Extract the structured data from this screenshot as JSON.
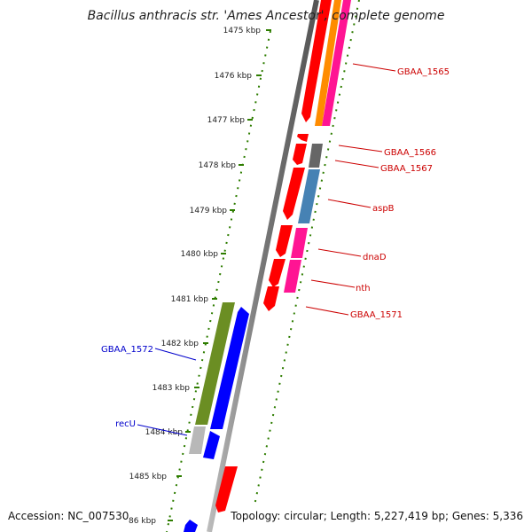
{
  "title": "Bacillus anthracis str. 'Ames Ancestor', complete genome",
  "footer": {
    "accession_label": "Accession:",
    "accession": "NC_007530",
    "topology_label": "Topology:",
    "topology": "circular;",
    "length_label": "Length:",
    "length": "5,227,419 bp;",
    "genes_label": "Genes:",
    "genes": "5,336"
  },
  "ticks": [
    "1475 kbp",
    "1476 kbp",
    "1477 kbp",
    "1478 kbp",
    "1479 kbp",
    "1480 kbp",
    "1481 kbp",
    "1482 kbp",
    "1483 kbp",
    "1484 kbp",
    "1485 kbp",
    "86 kbp"
  ],
  "gene_labels_forward": [
    "GBAA_1565",
    "GBAA_1566",
    "GBAA_1567",
    "aspB",
    "dnaD",
    "nth",
    "GBAA_1571"
  ],
  "gene_labels_reverse": [
    "GBAA_1572",
    "recU"
  ],
  "colors": {
    "red": "#ff0000",
    "orange": "#ff8c00",
    "pink": "#ff1493",
    "gray": "#666666",
    "steelblue": "#4682b4",
    "olive": "#6b8e23",
    "blue": "#0000ff",
    "lightgray": "#b8b8b8",
    "dots": "#2e7d00"
  }
}
